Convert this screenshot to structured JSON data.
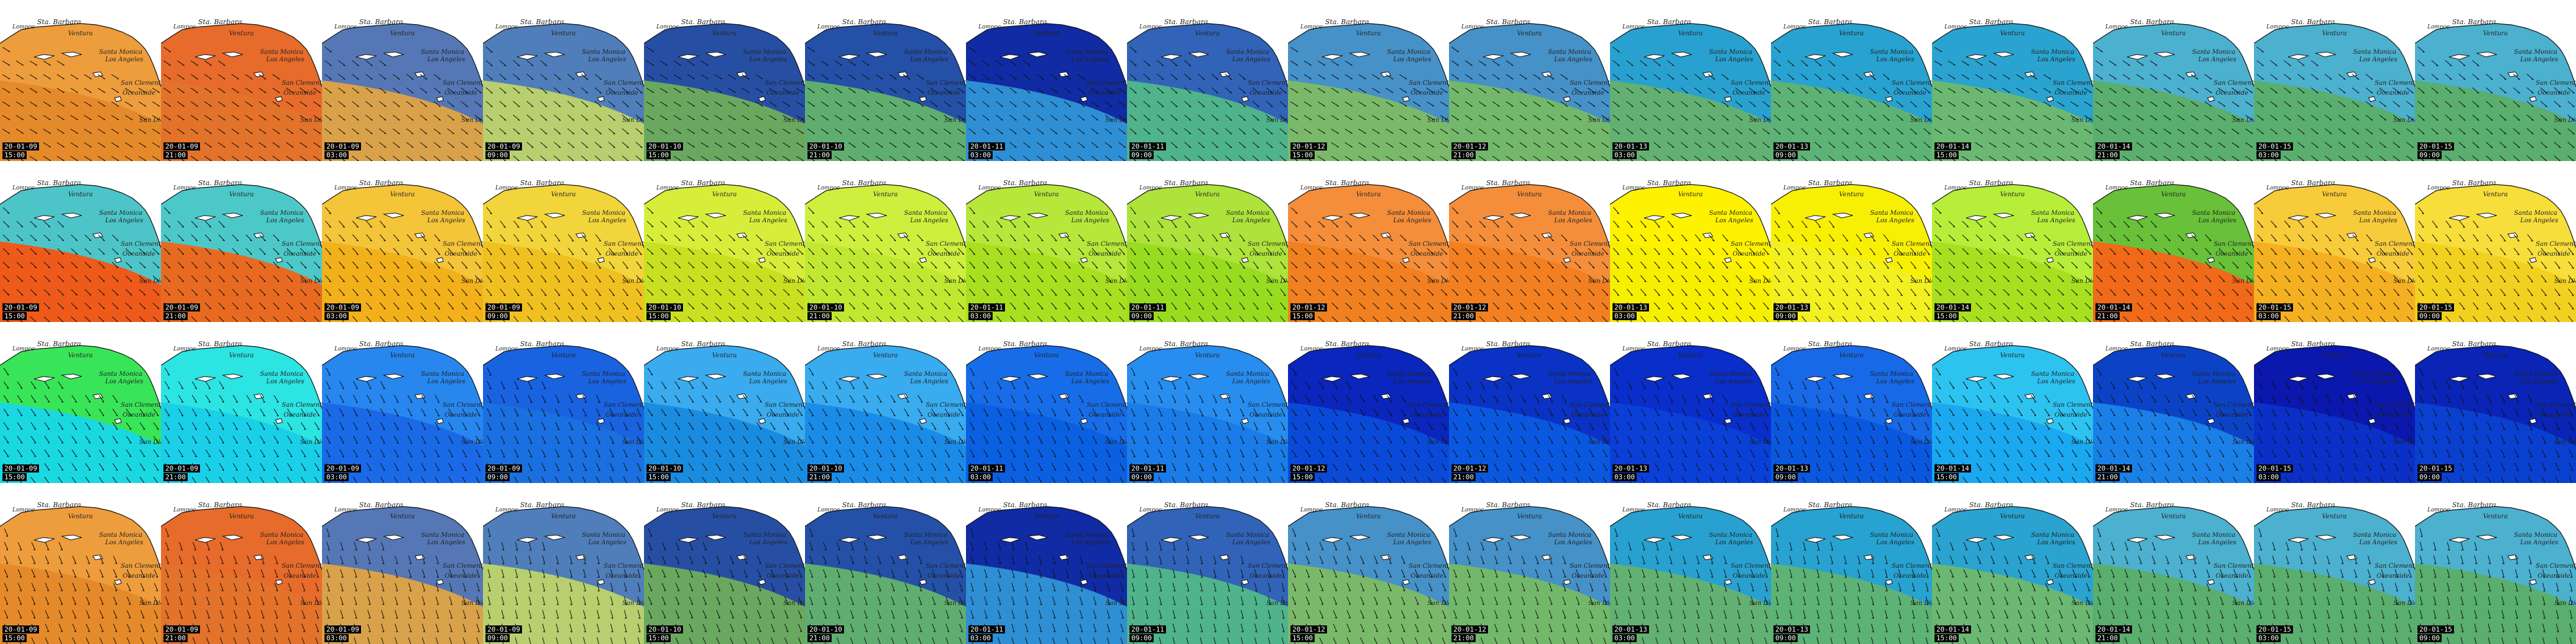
{
  "frames": [
    {
      "date": "20-01-09",
      "time": "15:00"
    },
    {
      "date": "20-01-09",
      "time": "21:00"
    },
    {
      "date": "20-01-09",
      "time": "03:00"
    },
    {
      "date": "20-01-09",
      "time": "09:00"
    },
    {
      "date": "20-01-10",
      "time": "15:00"
    },
    {
      "date": "20-01-10",
      "time": "21:00"
    },
    {
      "date": "20-01-11",
      "time": "03:00"
    },
    {
      "date": "20-01-11",
      "time": "09:00"
    },
    {
      "date": "20-01-12",
      "time": "15:00"
    },
    {
      "date": "20-01-12",
      "time": "21:00"
    },
    {
      "date": "20-01-13",
      "time": "03:00"
    },
    {
      "date": "20-01-13",
      "time": "09:00"
    },
    {
      "date": "20-01-14",
      "time": "15:00"
    },
    {
      "date": "20-01-14",
      "time": "21:00"
    },
    {
      "date": "20-01-15",
      "time": "03:00"
    },
    {
      "date": "20-01-15",
      "time": "09:00"
    }
  ],
  "places": {
    "lompoc": "Lompoc",
    "santa_barbara": "Sta. Barbara",
    "ventura": "Ventura",
    "santa_monica": "Santa Monica",
    "los_angeles": "Los Angeles",
    "san_clemente": "San Clemente",
    "oceanside": "Oceanside",
    "san_diego": "San Diego"
  },
  "rows": [
    {
      "name": "wave-height",
      "bg": [
        "#e58a2a",
        "#e3722a",
        "#d9a24a",
        "#b7cf6e",
        "#6aa85f",
        "#5fae70",
        "#2e8fd4",
        "#4fb38c",
        "#7bb96a",
        "#73b86a",
        "#62b172",
        "#5db276",
        "#6ab872",
        "#5aae6e",
        "#5aae6e",
        "#5aae6e"
      ],
      "near": [
        "#f0a040",
        "#e86a2a",
        "#3d70c8",
        "#3d70c8",
        "#1a3fb0",
        "#1a3fb0",
        "#0a1a9a",
        "#2c55c0",
        "#3d8ad8",
        "#3d8ad8",
        "#1f9fe0",
        "#1f9fe0",
        "#1f9fe0",
        "#4ab0e0",
        "#4ab0e0",
        "#4ab0e0"
      ]
    },
    {
      "name": "wave-period",
      "bg": [
        "#ee5a1a",
        "#e86a20",
        "#f2b01a",
        "#f0c020",
        "#c8e020",
        "#c0e830",
        "#a8e020",
        "#98dc20",
        "#f08020",
        "#f28020",
        "#f6f000",
        "#f2f020",
        "#a8e020",
        "#f06a1a",
        "#f4b020",
        "#f2d020"
      ],
      "near": [
        "#30d8e8",
        "#30d8e8",
        "#f4c840",
        "#f2d840",
        "#d8f040",
        "#d0f040",
        "#b8e840",
        "#b0e440",
        "#f49040",
        "#f49040",
        "#fff200",
        "#f8f000",
        "#b8f040",
        "#50d040",
        "#f8d040",
        "#f8e040"
      ]
    },
    {
      "name": "wind-speed",
      "bg": [
        "#1ad8e0",
        "#1ad0e8",
        "#1a6ae8",
        "#1a70e0",
        "#1a8ce0",
        "#1a8ce8",
        "#0a60e0",
        "#1a7ce8",
        "#0a4ad8",
        "#0a58e0",
        "#0a40d8",
        "#0a58e0",
        "#1aa8f0",
        "#1a80e8",
        "#0a30c8",
        "#0a40d0"
      ],
      "near": [
        "#40e840",
        "#30e8e0",
        "#2a8cf0",
        "#1a60e0",
        "#40b0f0",
        "#40b0f0",
        "#1a70e8",
        "#2a90f0",
        "#0a20b8",
        "#0a2cc0",
        "#0a2cc8",
        "#1a6ce8",
        "#30c8f0",
        "#0a38c0",
        "#0a14a8",
        "#0a20b0"
      ]
    },
    {
      "name": "wave-height-repeat",
      "bg": [
        "#e58a2a",
        "#e3722a",
        "#d9a24a",
        "#b7cf6e",
        "#6aa85f",
        "#5fae70",
        "#2e8fd4",
        "#4fb38c",
        "#7bb96a",
        "#73b86a",
        "#62b172",
        "#5db276",
        "#6ab872",
        "#5aae6e",
        "#5aae6e",
        "#5aae6e"
      ],
      "near": [
        "#f0a040",
        "#e86a2a",
        "#3d70c8",
        "#3d70c8",
        "#1a3fb0",
        "#1a3fb0",
        "#0a1a9a",
        "#2c55c0",
        "#3d8ad8",
        "#3d8ad8",
        "#1f9fe0",
        "#1f9fe0",
        "#1f9fe0",
        "#4ab0e0",
        "#4ab0e0",
        "#4ab0e0"
      ]
    }
  ]
}
